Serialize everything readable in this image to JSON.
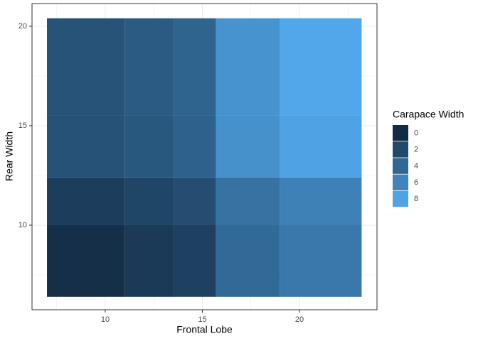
{
  "chart_data": {
    "type": "heatmap",
    "x_label": "Frontal Lobe",
    "y_label": "Rear Width",
    "x_edges": [
      7,
      11,
      13.5,
      15.7,
      19,
      23.2
    ],
    "y_edges": [
      6.4,
      10,
      12.4,
      15.5,
      20.4
    ],
    "values": [
      [
        0.3,
        1.0,
        1.5,
        4.2,
        5.2
      ],
      [
        1.2,
        1.8,
        2.3,
        4.8,
        5.8
      ],
      [
        2.6,
        3.0,
        3.6,
        6.8,
        8.0
      ],
      [
        2.7,
        3.2,
        3.8,
        7.0,
        8.3
      ]
    ],
    "xlim": [
      6.23,
      23.99
    ],
    "ylim": [
      5.75,
      21.14
    ],
    "xticks": [
      10,
      15,
      20
    ],
    "yticks": [
      10,
      15,
      20
    ],
    "x_minor_ticks": [
      7.5,
      12.5,
      17.5,
      22.5
    ],
    "y_minor_ticks": [
      7.5,
      12.5,
      17.5
    ],
    "grid": true,
    "legend": {
      "title": "Carapace Width",
      "values": [
        0,
        2,
        4,
        6,
        8
      ]
    },
    "color_low": "#132B43",
    "color_high": "#56B1F7",
    "fill_lim": [
      0,
      9
    ]
  }
}
